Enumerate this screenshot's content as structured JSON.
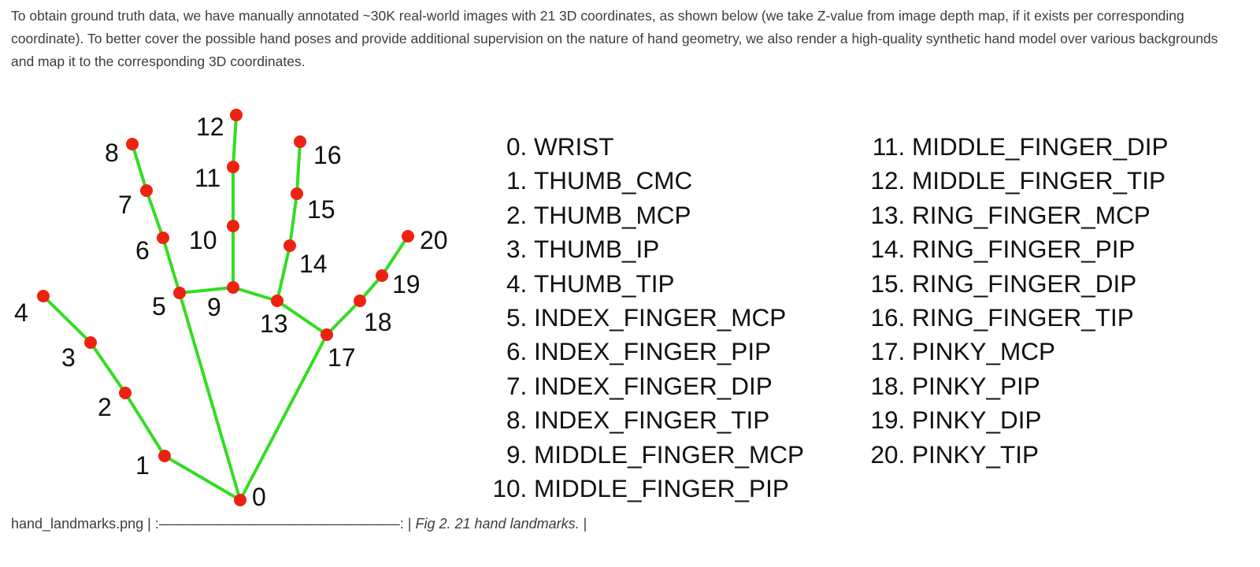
{
  "intro": "To obtain ground truth data, we have manually annotated ~30K real-world images with 21 3D coordinates, as shown below (we take Z-value from image depth map, if it exists per corresponding coordinate). To better cover the possible hand poses and provide additional supervision on the nature of hand geometry, we also render a high-quality synthetic hand model over various backgrounds and map it to the corresponding 3D coordinates.",
  "colors": {
    "bone": "#33dd22",
    "joint": "#ee2211"
  },
  "landmarks": [
    {
      "num": "0",
      "name": "WRIST"
    },
    {
      "num": "1",
      "name": "THUMB_CMC"
    },
    {
      "num": "2",
      "name": "THUMB_MCP"
    },
    {
      "num": "3",
      "name": "THUMB_IP"
    },
    {
      "num": "4",
      "name": "THUMB_TIP"
    },
    {
      "num": "5",
      "name": "INDEX_FINGER_MCP"
    },
    {
      "num": "6",
      "name": "INDEX_FINGER_PIP"
    },
    {
      "num": "7",
      "name": "INDEX_FINGER_DIP"
    },
    {
      "num": "8",
      "name": "INDEX_FINGER_TIP"
    },
    {
      "num": "9",
      "name": "MIDDLE_FINGER_MCP"
    },
    {
      "num": "10",
      "name": "MIDDLE_FINGER_PIP"
    },
    {
      "num": "11",
      "name": "MIDDLE_FINGER_DIP"
    },
    {
      "num": "12",
      "name": "MIDDLE_FINGER_TIP"
    },
    {
      "num": "13",
      "name": "RING_FINGER_MCP"
    },
    {
      "num": "14",
      "name": "RING_FINGER_PIP"
    },
    {
      "num": "15",
      "name": "RING_FINGER_DIP"
    },
    {
      "num": "16",
      "name": "RING_FINGER_TIP"
    },
    {
      "num": "17",
      "name": "PINKY_MCP"
    },
    {
      "num": "18",
      "name": "PINKY_PIP"
    },
    {
      "num": "19",
      "name": "PINKY_DIP"
    },
    {
      "num": "20",
      "name": "PINKY_TIP"
    }
  ],
  "connections": [
    [
      0,
      1
    ],
    [
      1,
      2
    ],
    [
      2,
      3
    ],
    [
      3,
      4
    ],
    [
      0,
      5
    ],
    [
      5,
      6
    ],
    [
      6,
      7
    ],
    [
      7,
      8
    ],
    [
      5,
      9
    ],
    [
      9,
      10
    ],
    [
      10,
      11
    ],
    [
      11,
      12
    ],
    [
      9,
      13
    ],
    [
      13,
      14
    ],
    [
      14,
      15
    ],
    [
      15,
      16
    ],
    [
      13,
      17
    ],
    [
      0,
      17
    ],
    [
      17,
      18
    ],
    [
      18,
      19
    ],
    [
      19,
      20
    ]
  ],
  "caption": {
    "filename": "hand_landmarks.png",
    "separator": " | :—————————————————: | ",
    "figure": "Fig 2. 21 hand landmarks.",
    "end": " |"
  }
}
